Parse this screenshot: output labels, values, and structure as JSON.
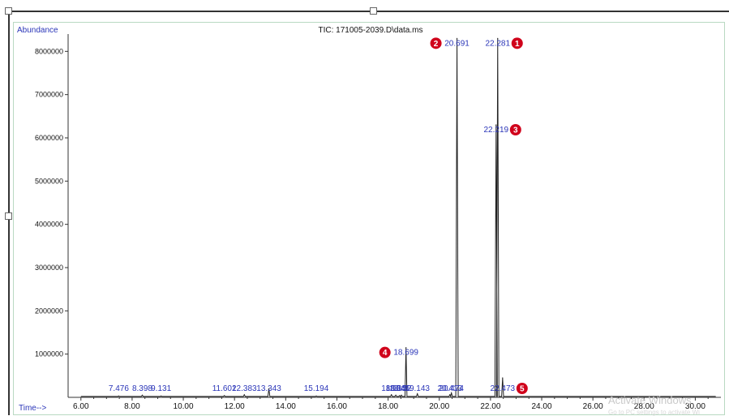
{
  "chart_data": {
    "type": "line",
    "title": "TIC: 171005-2039.D\\data.ms",
    "ylabel": "Abundance",
    "xlabel": "Time-->",
    "xlim": [
      5.5,
      31.0
    ],
    "ylim": [
      0,
      8400000
    ],
    "x_ticks": [
      "6.00",
      "8.00",
      "10.00",
      "12.00",
      "14.00",
      "16.00",
      "18.00",
      "20.00",
      "22.00",
      "24.00",
      "26.00",
      "28.00",
      "30.00"
    ],
    "y_ticks": [
      "1000000",
      "2000000",
      "3000000",
      "4000000",
      "5000000",
      "6000000",
      "7000000",
      "8000000"
    ],
    "grid": false,
    "series_color": "#222222",
    "peak_label_color": "#2a35b8",
    "marker_color": "#d0021b",
    "peaks": [
      {
        "x": 7.476,
        "y": 30000,
        "label": "7.476"
      },
      {
        "x": 8.398,
        "y": 50000,
        "label": "8.398"
      },
      {
        "x": 9.131,
        "y": 30000,
        "label": "9.131"
      },
      {
        "x": 11.602,
        "y": 40000,
        "label": "11.602"
      },
      {
        "x": 12.383,
        "y": 60000,
        "label": "12.383"
      },
      {
        "x": 13.343,
        "y": 200000,
        "label": "13.343"
      },
      {
        "x": 15.194,
        "y": 30000,
        "label": "15.194"
      },
      {
        "x": 18.13,
        "y": 60000,
        "label": "18.13"
      },
      {
        "x": 18.3,
        "y": 50000,
        "label": "18.30"
      },
      {
        "x": 18.45,
        "y": 40000,
        "label": "18.45"
      },
      {
        "x": 18.52,
        "y": 50000,
        "label": "18.52"
      },
      {
        "x": 18.699,
        "y": 1150000,
        "label": "18.699"
      },
      {
        "x": 19.143,
        "y": 80000,
        "label": "19.143"
      },
      {
        "x": 20.413,
        "y": 60000,
        "label": "20.413"
      },
      {
        "x": 20.474,
        "y": 100000,
        "label": "20.474"
      },
      {
        "x": 20.691,
        "y": 8300000,
        "label": "20.691"
      },
      {
        "x": 22.219,
        "y": 6300000,
        "label": "22.219"
      },
      {
        "x": 22.281,
        "y": 8300000,
        "label": "22.281"
      },
      {
        "x": 22.473,
        "y": 450000,
        "label": "22.473"
      }
    ],
    "annotations": [
      {
        "number": "1",
        "peak": "22.281"
      },
      {
        "number": "2",
        "peak": "20.691"
      },
      {
        "number": "3",
        "peak": "22.219"
      },
      {
        "number": "4",
        "peak": "18.699"
      },
      {
        "number": "5",
        "peak": "22.473"
      }
    ]
  },
  "watermark": {
    "title": "Activate Windows",
    "subtitle": "Go to PC settings to activate Wi"
  }
}
